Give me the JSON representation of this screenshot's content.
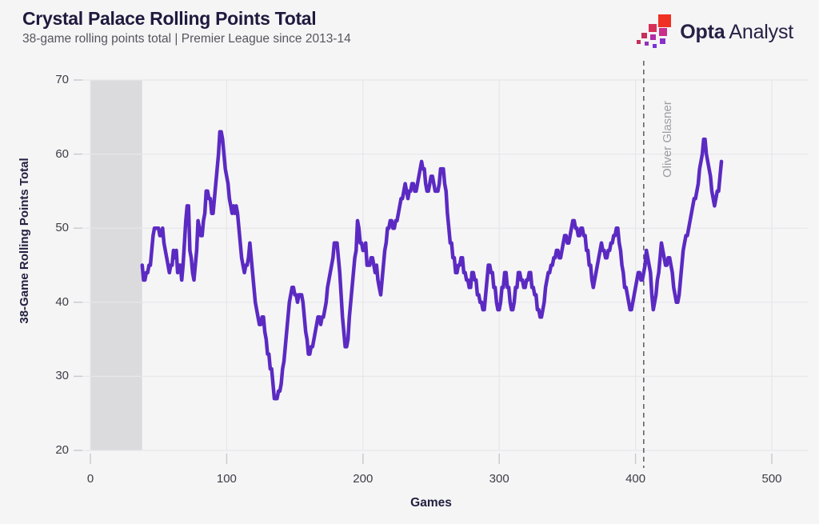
{
  "header": {
    "title": "Crystal Palace Rolling Points Total",
    "subtitle": "38-game rolling points total | Premier League since 2013-14"
  },
  "logo": {
    "brand_bold": "Opta",
    "brand_light": "Analyst",
    "colors": [
      "#ee3123",
      "#d73057",
      "#c92e8a",
      "#c5305c",
      "#b02da8",
      "#8a2fc9",
      "#7733d6",
      "#9431bb"
    ]
  },
  "chart_data": {
    "type": "line",
    "title": "Crystal Palace Rolling Points Total",
    "subtitle": "38-game rolling points total | Premier League since 2013-14",
    "xlabel": "Games",
    "ylabel": "38-Game Rolling Points Total",
    "xlim": [
      0,
      500
    ],
    "ylim": [
      20,
      70
    ],
    "x_ticks": [
      0,
      100,
      200,
      300,
      400,
      500
    ],
    "y_ticks": [
      70,
      60,
      50,
      40,
      30,
      20
    ],
    "grid": true,
    "line_color": "#5b2ac2",
    "band": {
      "x0": 0,
      "x1": 38,
      "color": "#dbdbde"
    },
    "annotation": {
      "label": "Oliver Glasner",
      "x": 406,
      "line_color": "#64646c",
      "label_color": "#9c9ca3"
    },
    "series": [
      {
        "name": "38-game rolling points total",
        "start_x": 38,
        "step": 1,
        "values": [
          45,
          43,
          43,
          44,
          44,
          45,
          45,
          47,
          49,
          50,
          50,
          50,
          50,
          49,
          49,
          50,
          48,
          47,
          46,
          45,
          44,
          45,
          45,
          47,
          46,
          47,
          44,
          45,
          45,
          43,
          45,
          48,
          51,
          53,
          53,
          47,
          46,
          44,
          43,
          45,
          47,
          51,
          50,
          49,
          49,
          51,
          52,
          55,
          55,
          54,
          54,
          52,
          52,
          54,
          56,
          58,
          60,
          63,
          63,
          62,
          60,
          58,
          57,
          56,
          54,
          53,
          52,
          53,
          52,
          53,
          52,
          50,
          48,
          46,
          45,
          44,
          45,
          45,
          46,
          48,
          46,
          44,
          42,
          40,
          39,
          38,
          37,
          37,
          38,
          38,
          36,
          35,
          33,
          33,
          31,
          31,
          29,
          27,
          27,
          27,
          28,
          28,
          29,
          31,
          32,
          34,
          36,
          38,
          40,
          41,
          42,
          42,
          41,
          41,
          40,
          41,
          41,
          41,
          40,
          38,
          36,
          35,
          33,
          33,
          34,
          34,
          35,
          36,
          37,
          38,
          38,
          37,
          38,
          38,
          39,
          40,
          42,
          43,
          44,
          45,
          46,
          48,
          48,
          48,
          46,
          44,
          41,
          38,
          36,
          34,
          34,
          35,
          38,
          40,
          42,
          44,
          46,
          47,
          51,
          50,
          48,
          48,
          47,
          47,
          48,
          45,
          45,
          45,
          46,
          46,
          45,
          44,
          45,
          43,
          42,
          41,
          43,
          45,
          47,
          48,
          50,
          50,
          51,
          51,
          50,
          50,
          51,
          51,
          52,
          53,
          54,
          54,
          55,
          56,
          55,
          54,
          55,
          55,
          56,
          56,
          55,
          55,
          56,
          57,
          58,
          59,
          58,
          58,
          56,
          55,
          55,
          56,
          57,
          57,
          56,
          55,
          55,
          55,
          56,
          58,
          58,
          58,
          56,
          55,
          52,
          50,
          48,
          48,
          46,
          46,
          44,
          44,
          45,
          45,
          46,
          46,
          44,
          44,
          43,
          43,
          42,
          42,
          44,
          44,
          43,
          43,
          41,
          41,
          40,
          40,
          39,
          39,
          41,
          43,
          45,
          45,
          44,
          44,
          42,
          42,
          40,
          39,
          39,
          40,
          42,
          42,
          44,
          44,
          42,
          42,
          40,
          39,
          39,
          40,
          42,
          42,
          44,
          44,
          43,
          43,
          42,
          42,
          43,
          43,
          44,
          44,
          42,
          42,
          41,
          41,
          39,
          39,
          38,
          38,
          39,
          40,
          42,
          43,
          44,
          44,
          45,
          45,
          46,
          46,
          47,
          47,
          46,
          46,
          47,
          48,
          49,
          49,
          48,
          48,
          49,
          50,
          51,
          51,
          50,
          50,
          49,
          49,
          50,
          50,
          49,
          49,
          47,
          47,
          45,
          45,
          43,
          42,
          43,
          44,
          45,
          46,
          47,
          48,
          47,
          47,
          46,
          46,
          47,
          47,
          48,
          48,
          49,
          49,
          50,
          50,
          48,
          47,
          45,
          44,
          42,
          42,
          41,
          40,
          39,
          39,
          40,
          41,
          42,
          43,
          44,
          44,
          43,
          43,
          44,
          45,
          47,
          46,
          45,
          44,
          41,
          39,
          40,
          41,
          43,
          44,
          46,
          48,
          47,
          46,
          45,
          45,
          46,
          46,
          45,
          44,
          42,
          41,
          40,
          40,
          41,
          43,
          45,
          47,
          48,
          49,
          49,
          50,
          51,
          52,
          53,
          54,
          54,
          55,
          56,
          58,
          59,
          60,
          62,
          62,
          60,
          59,
          58,
          57,
          55,
          54,
          53,
          54,
          55,
          55,
          57,
          59
        ]
      }
    ]
  },
  "style_colors": {
    "background": "#f5f5f6",
    "gridline": "#e7e7ea",
    "tick_mark": "#c9c9cf",
    "title_ink": "#1f1a3e",
    "subtitle_gray": "#55555e"
  }
}
